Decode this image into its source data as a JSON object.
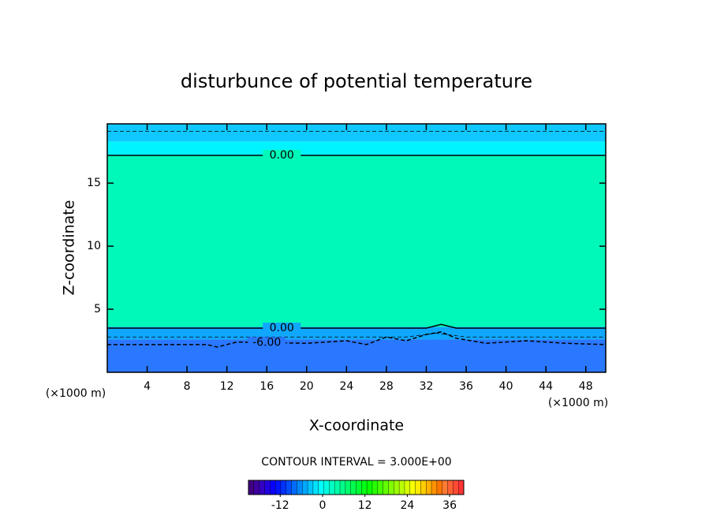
{
  "chart_data": {
    "type": "contour",
    "title": "disturbunce of potential temperature",
    "x_label": "X-coordinate",
    "y_label": "Z-coordinate",
    "x_unit": "(×1000 m)",
    "y_unit": "(×1000 m)",
    "xlim": [
      0,
      50
    ],
    "ylim": [
      0,
      19.7
    ],
    "xticks": [
      4,
      8,
      12,
      16,
      20,
      24,
      28,
      32,
      36,
      40,
      44,
      48
    ],
    "yticks": [
      5,
      10,
      15
    ],
    "bands": [
      {
        "z": [
          0,
          2.6
        ],
        "color": "#2a78ff"
      },
      {
        "z": [
          2.6,
          3.6
        ],
        "color": "#10a8ff"
      },
      {
        "z": [
          3.6,
          17.2
        ],
        "color": "#00f8b8"
      },
      {
        "z": [
          17.2,
          18.3
        ],
        "color": "#00f4ff"
      },
      {
        "z": [
          18.3,
          19.7
        ],
        "color": "#10c8ff"
      }
    ],
    "contours": [
      {
        "level": {
          "value": 0,
          "label": "0.00"
        },
        "style": "solid",
        "label_x": 17.5,
        "x": [
          0,
          50
        ],
        "y": [
          17.2,
          17.2
        ]
      },
      {
        "level": -3,
        "style": "dashed",
        "x": [
          0,
          50
        ],
        "y": [
          19.1,
          19.1
        ]
      },
      {
        "level": {
          "value": 0,
          "label": "0.00"
        },
        "style": "solid",
        "label_x": 17.5,
        "x": [
          0,
          32,
          33.5,
          35,
          50
        ],
        "y": [
          3.5,
          3.5,
          3.8,
          3.5,
          3.5
        ]
      },
      {
        "level": -3,
        "style": "dashed",
        "x": [
          0,
          30,
          33,
          36,
          50
        ],
        "y": [
          2.8,
          2.8,
          3.1,
          2.8,
          2.8
        ]
      },
      {
        "level": {
          "value": -6,
          "label": "-6.00"
        },
        "style": "dashed",
        "label_x": 16,
        "x": [
          0,
          10,
          11,
          13,
          20,
          24,
          26,
          28,
          30,
          32,
          33.5,
          35,
          38,
          42,
          46,
          50
        ],
        "y": [
          2.2,
          2.2,
          2.0,
          2.4,
          2.3,
          2.5,
          2.2,
          2.8,
          2.5,
          3.0,
          3.2,
          2.7,
          2.3,
          2.5,
          2.3,
          2.2
        ]
      }
    ],
    "contour_interval": "CONTOUR INTERVAL = 3.000E+00",
    "clim": [
      -21,
      40
    ],
    "cticks": [
      -12,
      0,
      12,
      24,
      36
    ]
  }
}
